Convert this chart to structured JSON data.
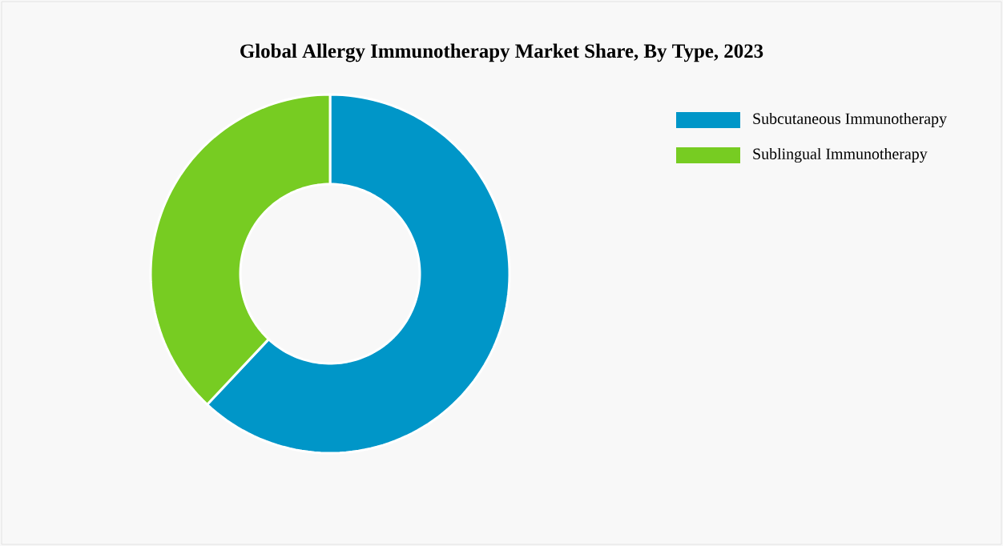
{
  "chart_data": {
    "type": "donut",
    "title": "Global Allergy Immunotherapy Market Share, By Type, 2023",
    "categories": [
      "Subcutaneous Immunotherapy",
      "Sublingual Immunotherapy"
    ],
    "values": [
      62,
      38
    ],
    "colors": [
      "#0096c8",
      "#77cc22"
    ],
    "legend": "top right"
  }
}
